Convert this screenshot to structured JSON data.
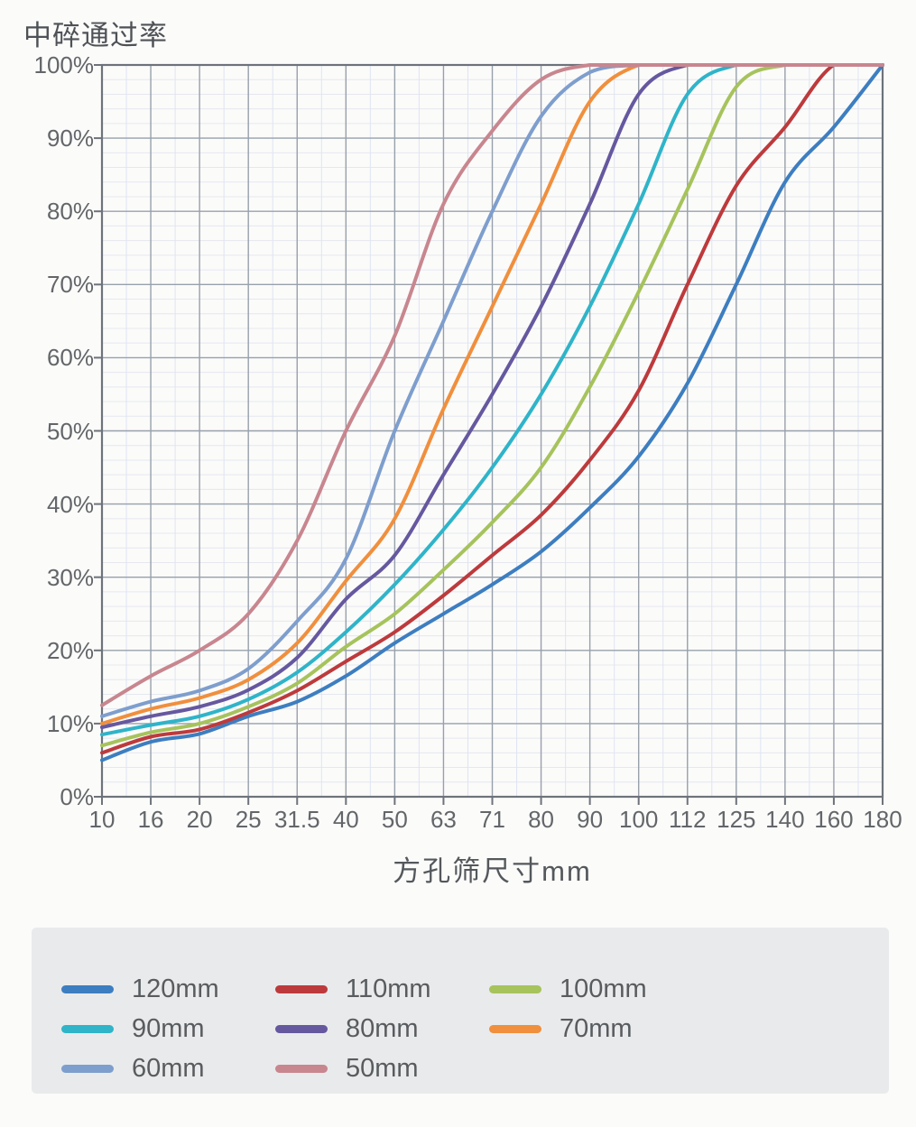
{
  "chart_data": {
    "type": "line",
    "title": "中碎通过率",
    "xlabel": "方孔筛尺寸mm",
    "x_tick_labels": [
      "10",
      "16",
      "20",
      "25",
      "31.5",
      "40",
      "50",
      "63",
      "71",
      "80",
      "90",
      "100",
      "112",
      "125",
      "140",
      "160",
      "180"
    ],
    "y_tick_labels": [
      "0%",
      "10%",
      "20%",
      "30%",
      "40%",
      "50%",
      "60%",
      "70%",
      "80%",
      "90%",
      "100%"
    ],
    "ylim": [
      0,
      100
    ],
    "grid": {
      "major_y_step_percent": 10,
      "minor_y_step_percent": 2,
      "minor_x": "midpoints-between-ticks"
    },
    "legend_position": "bottom",
    "series": [
      {
        "name": "120mm",
        "color": "#3d7ec0",
        "values": [
          5,
          7.5,
          8.6,
          11,
          13,
          16.5,
          21,
          25,
          29,
          33.5,
          39.5,
          46.5,
          56.5,
          70,
          84,
          91.5,
          100
        ]
      },
      {
        "name": "110mm",
        "color": "#bd3a3c",
        "values": [
          6,
          8.2,
          9.2,
          11.5,
          14.5,
          18.5,
          22.5,
          27.5,
          33,
          38.5,
          46,
          55.5,
          70,
          83.5,
          91.5,
          100,
          100
        ]
      },
      {
        "name": "100mm",
        "color": "#a6c35c",
        "values": [
          7,
          8.8,
          10,
          12.3,
          15.5,
          20.5,
          25,
          31,
          37.5,
          45,
          56,
          69,
          83,
          97,
          100,
          100,
          100
        ]
      },
      {
        "name": "90mm",
        "color": "#2fb4c9",
        "values": [
          8.5,
          9.8,
          11,
          13.3,
          17,
          22.5,
          29,
          36.5,
          45,
          55,
          67,
          81,
          96,
          100,
          100,
          100,
          100
        ]
      },
      {
        "name": "80mm",
        "color": "#66589f",
        "values": [
          9.5,
          11,
          12.3,
          14.6,
          19,
          27,
          33,
          44,
          55,
          67,
          81,
          96,
          100,
          100,
          100,
          100,
          100
        ]
      },
      {
        "name": "70mm",
        "color": "#f08f3d",
        "values": [
          10,
          12,
          13.5,
          16,
          21,
          29.5,
          38,
          53,
          67,
          81,
          95,
          100,
          100,
          100,
          100,
          100,
          100
        ]
      },
      {
        "name": "60mm",
        "color": "#7e9ecd",
        "values": [
          11,
          13,
          14.5,
          17.5,
          24,
          32.5,
          50,
          65,
          80,
          93,
          99,
          100,
          100,
          100,
          100,
          100,
          100
        ]
      },
      {
        "name": "50mm",
        "color": "#c8868f",
        "values": [
          12.5,
          16.5,
          20,
          25,
          35,
          50,
          63,
          81,
          91,
          98,
          100,
          100,
          100,
          100,
          100,
          100,
          100
        ]
      }
    ]
  }
}
